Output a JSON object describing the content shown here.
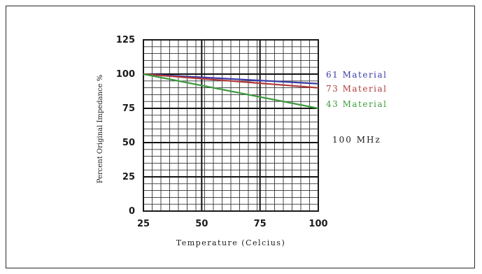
{
  "chart_data": {
    "type": "line",
    "title": "",
    "xlabel": "Temperature (Celcius)",
    "ylabel": "Percent Original Impedance %",
    "xlim": [
      25,
      100
    ],
    "ylim": [
      0,
      125
    ],
    "x_ticks": [
      25,
      50,
      75,
      100
    ],
    "y_ticks": [
      0,
      25,
      50,
      75,
      100,
      125
    ],
    "grid": true,
    "annotation": "100 MHz",
    "series": [
      {
        "name": "61 Material",
        "color": "#3a3aa8",
        "x": [
          25,
          100
        ],
        "y": [
          100,
          93
        ]
      },
      {
        "name": "73 Material",
        "color": "#b03a3a",
        "x": [
          25,
          100
        ],
        "y": [
          100,
          90
        ]
      },
      {
        "name": "43 Material",
        "color": "#3c9a3c",
        "x": [
          25,
          100
        ],
        "y": [
          100,
          75
        ]
      }
    ]
  }
}
